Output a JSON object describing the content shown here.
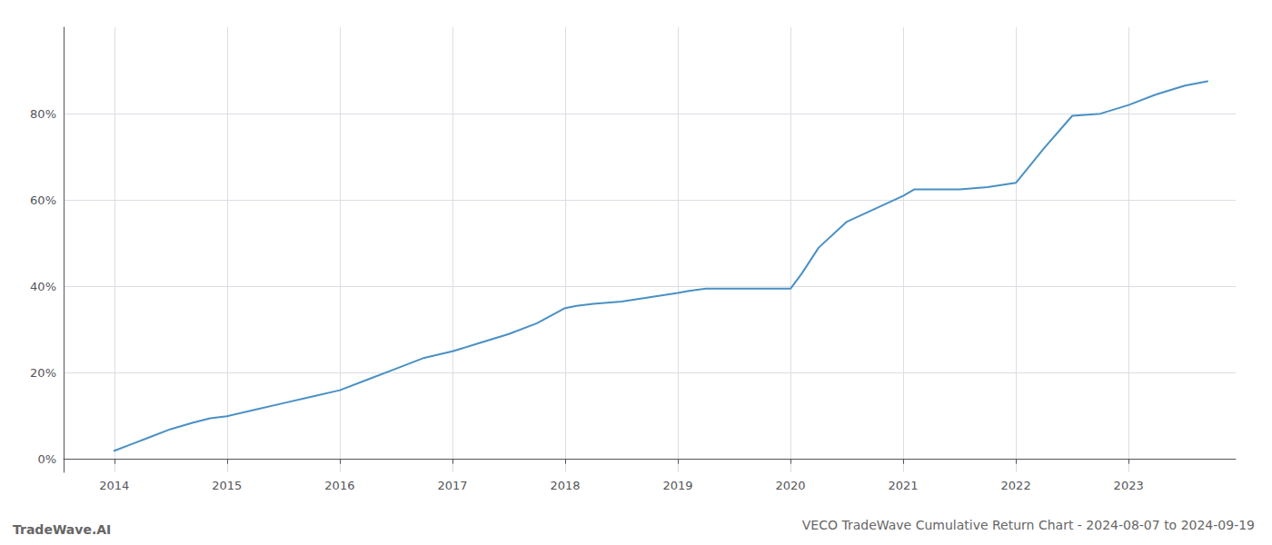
{
  "chart_data": {
    "type": "line",
    "title": "VECO TradeWave Cumulative Return Chart - 2024-08-07 to 2024-09-19",
    "annotations": [
      "TradeWave.AI"
    ],
    "x": [
      2014.0,
      2014.15,
      2014.3,
      2014.5,
      2014.7,
      2014.85,
      2015.0,
      2015.25,
      2015.5,
      2015.75,
      2016.0,
      2016.25,
      2016.5,
      2016.75,
      2017.0,
      2017.25,
      2017.5,
      2017.75,
      2018.0,
      2018.1,
      2018.25,
      2018.5,
      2018.75,
      2019.0,
      2019.1,
      2019.25,
      2019.5,
      2019.75,
      2020.0,
      2020.1,
      2020.25,
      2020.5,
      2020.75,
      2021.0,
      2021.1,
      2021.25,
      2021.5,
      2021.75,
      2022.0,
      2022.25,
      2022.5,
      2022.75,
      2023.0,
      2023.25,
      2023.5,
      2023.7
    ],
    "values": [
      2.0,
      3.5,
      5.0,
      7.0,
      8.5,
      9.5,
      10.0,
      11.5,
      13.0,
      14.5,
      16.0,
      18.5,
      21.0,
      23.5,
      25.0,
      27.0,
      29.0,
      31.5,
      35.0,
      35.5,
      36.0,
      36.5,
      37.5,
      38.5,
      39.0,
      39.5,
      39.5,
      39.5,
      39.5,
      43.0,
      49.0,
      55.0,
      58.0,
      61.0,
      62.5,
      62.5,
      62.5,
      63.0,
      64.0,
      72.0,
      79.5,
      80.0,
      82.0,
      84.5,
      86.5,
      87.5
    ],
    "color": "#4a90c4",
    "xlim": [
      2013.55,
      2023.95
    ],
    "ylim": [
      -3,
      100
    ],
    "xticks": [
      2014,
      2015,
      2016,
      2017,
      2018,
      2019,
      2020,
      2021,
      2022,
      2023
    ],
    "yticks": [
      {
        "value": 0,
        "label": "0%"
      },
      {
        "value": 20,
        "label": "20%"
      },
      {
        "value": 40,
        "label": "40%"
      },
      {
        "value": 60,
        "label": "60%"
      },
      {
        "value": 80,
        "label": "80%"
      }
    ],
    "grid": true
  }
}
